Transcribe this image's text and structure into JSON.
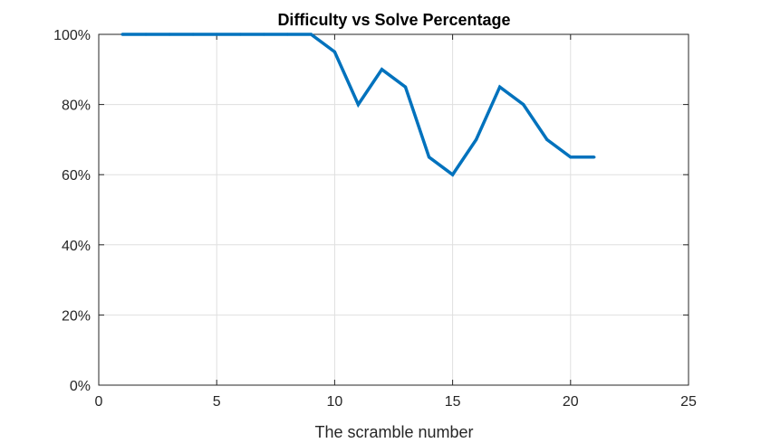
{
  "chart_data": {
    "type": "line",
    "title": "Difficulty vs Solve Percentage",
    "xlabel": "The scramble number",
    "ylabel": "",
    "xlim": [
      0,
      25
    ],
    "ylim": [
      0,
      100
    ],
    "x_ticks": [
      0,
      5,
      10,
      15,
      20,
      25
    ],
    "x_tick_labels": [
      "0",
      "5",
      "10",
      "15",
      "20",
      "25"
    ],
    "y_ticks": [
      0,
      20,
      40,
      60,
      80,
      100
    ],
    "y_tick_labels": [
      "0%",
      "20%",
      "40%",
      "60%",
      "80%",
      "100%"
    ],
    "grid": true,
    "series": [
      {
        "color": "#0072bd",
        "x": [
          1,
          2,
          3,
          4,
          5,
          6,
          7,
          8,
          9,
          10,
          11,
          12,
          13,
          14,
          15,
          16,
          17,
          18,
          19,
          20,
          21
        ],
        "values": [
          100,
          100,
          100,
          100,
          100,
          100,
          100,
          100,
          100,
          95,
          80,
          90,
          85,
          65,
          60,
          70,
          85,
          80,
          70,
          65,
          65
        ]
      }
    ]
  }
}
